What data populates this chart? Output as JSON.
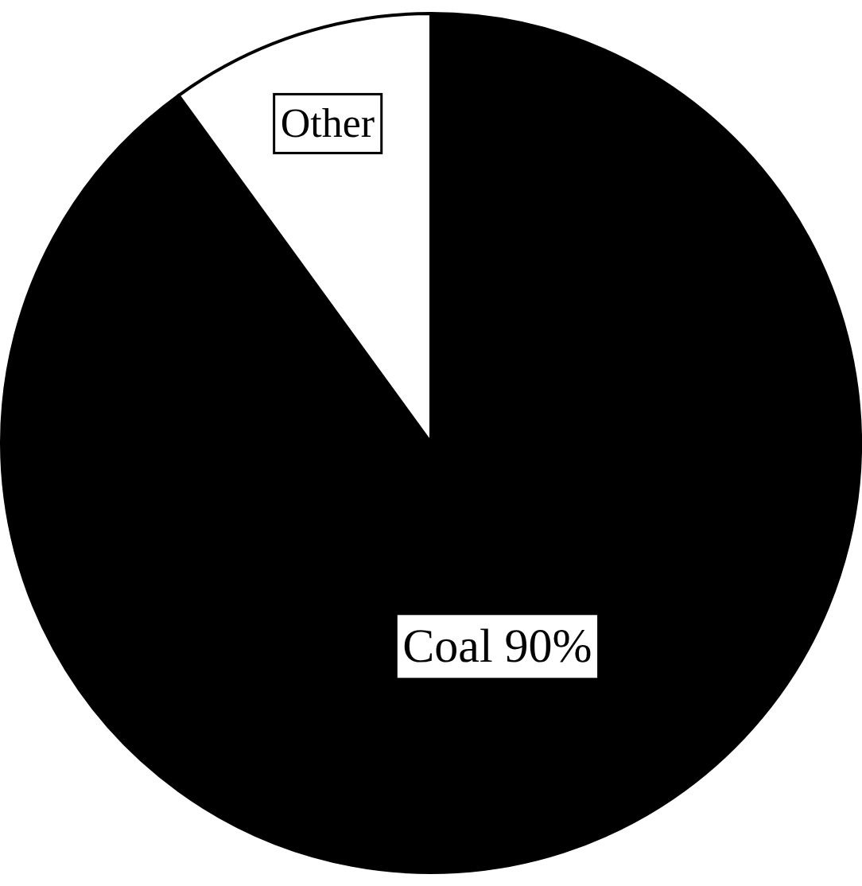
{
  "chart_data": {
    "type": "pie",
    "categories": [
      "Coal",
      "Other"
    ],
    "values": [
      90,
      10
    ],
    "colors": [
      "#000000",
      "#ffffff"
    ],
    "value_labels": [
      "90%",
      null
    ]
  }
}
